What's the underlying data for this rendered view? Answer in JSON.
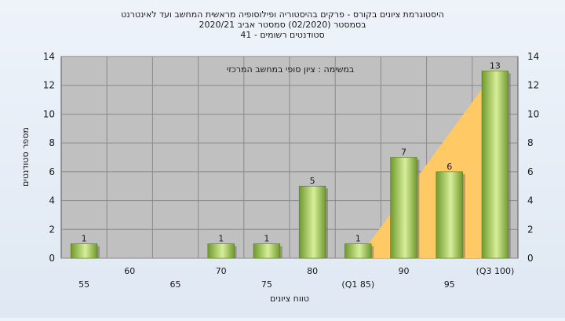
{
  "chart_data": {
    "type": "bar",
    "title_lines": [
      "היסטוגרמת ציונים בקורס - פרקים בהיסטוריה ופילוסופיה מראשית המחשב ועד לאינטרנט",
      "בסמסטר  (02/2020)  סמסטר אביב 2020/21",
      "סטודנטים רשומים - 41"
    ],
    "annotation": "במשימה : ציון סופי במחשב המרכזי",
    "xlabel": "טווח ציונים",
    "ylabel": "מספר סטודנטים",
    "ylim": [
      0,
      14
    ],
    "yticks": [
      0,
      2,
      4,
      6,
      8,
      10,
      12,
      14
    ],
    "grid": true,
    "categories": [
      "55",
      "60",
      "65",
      "70",
      "75",
      "80",
      "(Q1 85)",
      "90",
      "95",
      "(Q3 100)"
    ],
    "values": [
      1,
      0,
      0,
      1,
      1,
      5,
      1,
      7,
      6,
      13
    ],
    "value_labels": [
      "1",
      "",
      "",
      "1",
      "1",
      "5",
      "1",
      "7",
      "6",
      "13"
    ],
    "quartile_band": {
      "from_category": "(Q1 85)",
      "to_category": "(Q3 100)"
    },
    "colors": {
      "bar_light": "#d8ee9a",
      "bar_dark": "#6f9a2e",
      "plot_bg": "#c0c0c0",
      "band": "#ffc966",
      "grid": "#8a8a8a"
    }
  }
}
